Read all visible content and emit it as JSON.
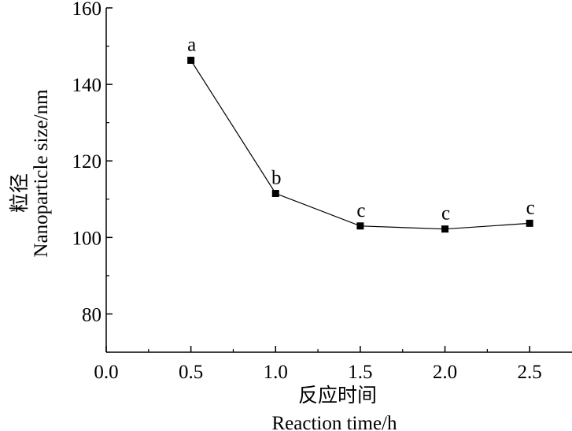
{
  "chart_data": {
    "type": "line",
    "xlabel_cn": "反应时间",
    "xlabel": "Reaction time/h",
    "ylabel_cn": "粒径",
    "ylabel": "Nanoparticle size/nm",
    "xlim": [
      0.0,
      2.75
    ],
    "ylim": [
      70,
      160
    ],
    "xticks": [
      0.0,
      0.5,
      1.0,
      1.5,
      2.0,
      2.5
    ],
    "xtick_labels": [
      "0.0",
      "0.5",
      "1.0",
      "1.5",
      "2.0",
      "2.5"
    ],
    "yticks": [
      80,
      100,
      120,
      140,
      160
    ],
    "ytick_labels": [
      "80",
      "100",
      "120",
      "140",
      "160"
    ],
    "series": [
      {
        "x": [
          0.5,
          1.0,
          1.5,
          2.0,
          2.5
        ],
        "y": [
          146.3,
          111.5,
          103.0,
          102.2,
          103.7
        ],
        "labels": [
          "a",
          "b",
          "c",
          "c",
          "c"
        ],
        "marker": "square",
        "color": "#000000"
      }
    ],
    "grid": false
  }
}
